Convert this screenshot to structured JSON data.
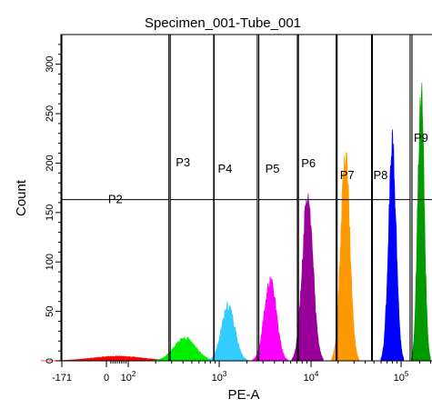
{
  "chart_data": {
    "type": "histogram",
    "title": "Specimen_001-Tube_001",
    "xlabel": "PE-A",
    "ylabel": "Count",
    "xscale": "biexponential",
    "xlim": [
      -171,
      350000
    ],
    "ylim": [
      0,
      330
    ],
    "y_ticks": [
      0,
      50,
      100,
      150,
      200,
      250,
      300
    ],
    "x_ticks": [
      {
        "label": "-171",
        "value": -171
      },
      {
        "label": "0",
        "value": 0
      },
      {
        "label": "10",
        "sup": "2",
        "value": 100
      },
      {
        "label": "10",
        "sup": "3",
        "value": 1000
      },
      {
        "label": "10",
        "sup": "4",
        "value": 10000
      },
      {
        "label": "10",
        "sup": "5",
        "value": 100000
      }
    ],
    "gate_level": 163,
    "gates": [
      {
        "name": "P2",
        "range": [
          -171,
          280
        ]
      },
      {
        "name": "P3",
        "range": [
          290,
          870
        ]
      },
      {
        "name": "P4",
        "range": [
          880,
          2600
        ]
      },
      {
        "name": "P5",
        "range": [
          2700,
          7100
        ]
      },
      {
        "name": "P6",
        "range": [
          7300,
          19000
        ]
      },
      {
        "name": "P7",
        "range": [
          19500,
          47000
        ]
      },
      {
        "name": "P8",
        "range": [
          48000,
          140000
        ]
      },
      {
        "name": "P9",
        "range": [
          150000,
          350000
        ]
      }
    ],
    "series": [
      {
        "color": "#ff0000",
        "peak_x": 50,
        "peak_count": 5
      },
      {
        "color": "#00ee00",
        "peak_x": 420,
        "peak_count": 25
      },
      {
        "color": "#33ccff",
        "peak_x": 1250,
        "peak_count": 60
      },
      {
        "color": "#ff00ff",
        "peak_x": 3600,
        "peak_count": 88
      },
      {
        "color": "#990099",
        "peak_x": 9200,
        "peak_count": 180
      },
      {
        "color": "#ff9900",
        "peak_x": 24000,
        "peak_count": 230
      },
      {
        "color": "#0000ff",
        "peak_x": 80000,
        "peak_count": 238
      },
      {
        "color": "#009900",
        "peak_x": 210000,
        "peak_count": 300
      }
    ]
  }
}
